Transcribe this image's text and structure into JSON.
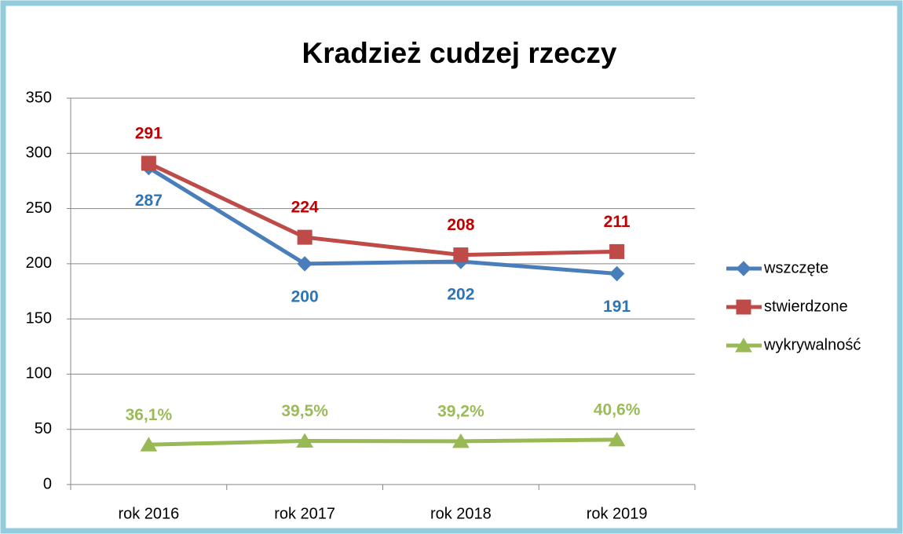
{
  "chart_data": {
    "type": "line",
    "title": "Kradzież cudzej rzeczy",
    "categories": [
      "rok 2016",
      "rok 2017",
      "rok 2018",
      "rok 2019"
    ],
    "series": [
      {
        "name": "wszczęte",
        "color": "#4a7ebb",
        "label_color": "#2e75b6",
        "label_position": "below",
        "marker": "diamond",
        "values": [
          287,
          200,
          202,
          191
        ]
      },
      {
        "name": "stwierdzone",
        "color": "#be4b48",
        "label_color": "#c00000",
        "label_position": "above",
        "marker": "square",
        "values": [
          291,
          224,
          208,
          211
        ]
      },
      {
        "name": "wykrywalność",
        "color": "#98b954",
        "label_color": "#9bbb59",
        "label_position": "above",
        "marker": "triangle",
        "values": [
          36.1,
          39.5,
          39.2,
          40.6
        ],
        "value_labels": [
          "36,1%",
          "39,5%",
          "39,2%",
          "40,6%"
        ]
      }
    ],
    "ylim": [
      0,
      350
    ],
    "yticks": [
      0,
      50,
      100,
      150,
      200,
      250,
      300,
      350
    ],
    "grid": true,
    "legend": "right"
  }
}
